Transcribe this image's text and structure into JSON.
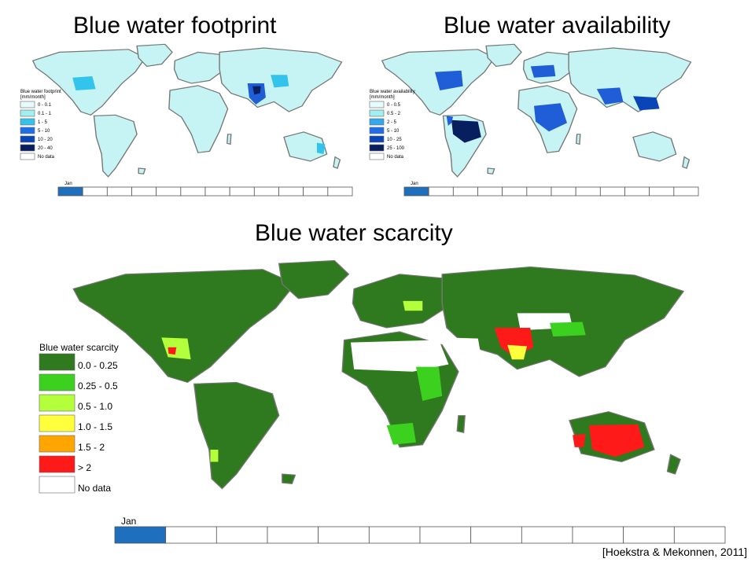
{
  "panels": {
    "footprint": {
      "title": "Blue water footprint",
      "legend_title": "Blue water footprint",
      "legend_unit": "[mm/month]",
      "legend": [
        {
          "label": "0 - 0.1",
          "color": "#e6fbfb"
        },
        {
          "label": "0.1 - 1",
          "color": "#a3eeee"
        },
        {
          "label": "1 - 5",
          "color": "#33c4ee"
        },
        {
          "label": "5 - 10",
          "color": "#1f6ee6"
        },
        {
          "label": "10 - 20",
          "color": "#0a45b8"
        },
        {
          "label": "20 - 40",
          "color": "#071f5e"
        },
        {
          "label": "No data",
          "color": "#ffffff"
        }
      ],
      "month_label": "Jan",
      "month_count": 12,
      "active_month": 0
    },
    "availability": {
      "title": "Blue water availability",
      "legend_title": "Blue water availability",
      "legend_unit": "[mm/month]",
      "legend": [
        {
          "label": "0 - 0.5",
          "color": "#e6fbfb"
        },
        {
          "label": "0.5 - 2",
          "color": "#a3eeee"
        },
        {
          "label": "2 - 5",
          "color": "#33a8ee"
        },
        {
          "label": "5 - 10",
          "color": "#1f6ee6"
        },
        {
          "label": "10 - 25",
          "color": "#0a45b8"
        },
        {
          "label": "25 - 100",
          "color": "#071f5e"
        },
        {
          "label": "No data",
          "color": "#ffffff"
        }
      ],
      "month_label": "Jan",
      "month_count": 12,
      "active_month": 0
    },
    "scarcity": {
      "title": "Blue water scarcity",
      "legend_title": "Blue water scarcity",
      "legend": [
        {
          "label": "0.0 - 0.25",
          "color": "#2f7a1e"
        },
        {
          "label": "0.25 - 0.5",
          "color": "#3cd11f"
        },
        {
          "label": "0.5 - 1.0",
          "color": "#b4ff3c"
        },
        {
          "label": "1.0 - 1.5",
          "color": "#ffff3c"
        },
        {
          "label": "1.5 - 2",
          "color": "#ffa500"
        },
        {
          "label": "> 2",
          "color": "#ff1a1a"
        },
        {
          "label": "No data",
          "color": "#ffffff"
        }
      ],
      "month_label": "Jan",
      "month_count": 12,
      "active_month": 0
    }
  },
  "month_active_color": "#1f6fbf",
  "citation": "[Hoekstra & Mekonnen, 2011]"
}
